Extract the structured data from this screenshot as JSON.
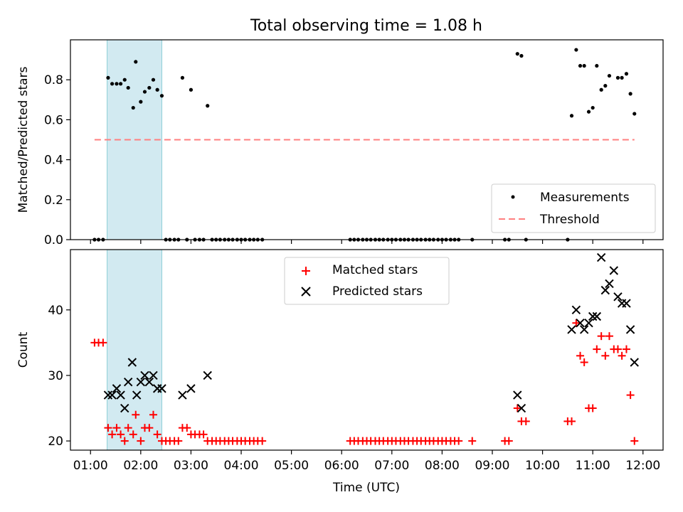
{
  "chart_data": [
    {
      "type": "scatter",
      "title": "Total observing time = 1.08 h",
      "xlabel": "",
      "ylabel": "Matched/Predicted stars",
      "x_unit": "hours UTC",
      "xlim": [
        0.6,
        12.4
      ],
      "ylim": [
        0.0,
        1.0
      ],
      "yticks": [
        "0.0",
        "0.2",
        "0.4",
        "0.6",
        "0.8"
      ],
      "shaded_span": [
        1.33,
        2.42
      ],
      "shaded_color": "#add8e6",
      "grid": false,
      "legend_position": "lower right",
      "legend": [
        "Measurements",
        "Threshold"
      ],
      "series": [
        {
          "name": "Measurements",
          "marker": "dot",
          "color": "#000000",
          "x": [
            1.35,
            1.43,
            1.52,
            1.6,
            1.68,
            1.75,
            1.85,
            1.9,
            2.0,
            2.08,
            2.17,
            2.25,
            2.33,
            2.42,
            2.83,
            3.0,
            3.33,
            9.5,
            9.58,
            10.58,
            10.67,
            10.75,
            10.83,
            10.92,
            11.0,
            11.08,
            11.17,
            11.25,
            11.33,
            11.5,
            11.58,
            11.67,
            11.75,
            11.83,
            1.08,
            1.16,
            1.25,
            2.5,
            2.58,
            2.67,
            2.75,
            2.92,
            3.08,
            3.17,
            3.25,
            3.42,
            3.5,
            3.58,
            3.67,
            3.75,
            3.83,
            3.92,
            4.0,
            4.08,
            4.17,
            4.25,
            4.33,
            4.42,
            6.17,
            6.25,
            6.33,
            6.42,
            6.5,
            6.58,
            6.67,
            6.75,
            6.83,
            6.92,
            7.0,
            7.08,
            7.17,
            7.25,
            7.33,
            7.42,
            7.5,
            7.58,
            7.67,
            7.75,
            7.83,
            7.92,
            8.0,
            8.08,
            8.17,
            8.25,
            8.33,
            8.6,
            9.25,
            9.33,
            9.67,
            10.5
          ],
          "y": [
            0.81,
            0.78,
            0.78,
            0.78,
            0.8,
            0.76,
            0.66,
            0.89,
            0.69,
            0.74,
            0.76,
            0.8,
            0.75,
            0.72,
            0.81,
            0.75,
            0.67,
            0.93,
            0.92,
            0.62,
            0.95,
            0.87,
            0.87,
            0.64,
            0.66,
            0.87,
            0.75,
            0.77,
            0.82,
            0.81,
            0.81,
            0.83,
            0.73,
            0.63,
            0,
            0,
            0,
            0,
            0,
            0,
            0,
            0,
            0,
            0,
            0,
            0,
            0,
            0,
            0,
            0,
            0,
            0,
            0,
            0,
            0,
            0,
            0,
            0,
            0,
            0,
            0,
            0,
            0,
            0,
            0,
            0,
            0,
            0,
            0,
            0,
            0,
            0,
            0,
            0,
            0,
            0,
            0,
            0,
            0,
            0,
            0,
            0,
            0,
            0,
            0,
            0,
            0,
            0,
            0,
            0
          ]
        },
        {
          "name": "Threshold",
          "style": "dashed",
          "color": "#ff7f7f",
          "x": [
            1.08,
            11.83
          ],
          "y": [
            0.5,
            0.5
          ]
        }
      ]
    },
    {
      "type": "scatter",
      "title": "",
      "xlabel": "Time (UTC)",
      "ylabel": "Count",
      "x_unit": "hours UTC",
      "xlim": [
        0.6,
        12.4
      ],
      "ylim": [
        18.6,
        49.2
      ],
      "yticks": [
        "20",
        "30",
        "40"
      ],
      "xticks": [
        "01:00",
        "02:00",
        "03:00",
        "04:00",
        "05:00",
        "06:00",
        "07:00",
        "08:00",
        "09:00",
        "10:00",
        "11:00",
        "12:00"
      ],
      "shaded_span": [
        1.33,
        2.42
      ],
      "shaded_color": "#add8e6",
      "grid": false,
      "legend_position": "upper center",
      "legend": [
        "Matched stars",
        "Predicted stars"
      ],
      "series": [
        {
          "name": "Matched stars",
          "marker": "plus",
          "color": "#ff0000",
          "x": [
            1.08,
            1.16,
            1.25,
            1.35,
            1.43,
            1.52,
            1.6,
            1.68,
            1.75,
            1.85,
            1.9,
            2.0,
            2.08,
            2.17,
            2.25,
            2.33,
            2.42,
            2.5,
            2.58,
            2.67,
            2.75,
            2.83,
            2.92,
            3.0,
            3.08,
            3.17,
            3.25,
            3.33,
            3.42,
            3.5,
            3.58,
            3.67,
            3.75,
            3.83,
            3.92,
            4.0,
            4.08,
            4.17,
            4.25,
            4.33,
            4.42,
            6.17,
            6.25,
            6.33,
            6.42,
            6.5,
            6.58,
            6.67,
            6.75,
            6.83,
            6.92,
            7.0,
            7.08,
            7.17,
            7.25,
            7.33,
            7.42,
            7.5,
            7.58,
            7.67,
            7.75,
            7.83,
            7.92,
            8.0,
            8.08,
            8.17,
            8.25,
            8.33,
            8.6,
            9.25,
            9.33,
            9.5,
            9.58,
            9.67,
            10.5,
            10.58,
            10.67,
            10.75,
            10.83,
            10.92,
            11.0,
            11.08,
            11.17,
            11.25,
            11.33,
            11.42,
            11.5,
            11.58,
            11.67,
            11.75,
            11.83
          ],
          "y": [
            35,
            35,
            35,
            22,
            21,
            22,
            21,
            20,
            22,
            21,
            24,
            20,
            22,
            22,
            24,
            21,
            20,
            20,
            20,
            20,
            20,
            22,
            22,
            21,
            21,
            21,
            21,
            20,
            20,
            20,
            20,
            20,
            20,
            20,
            20,
            20,
            20,
            20,
            20,
            20,
            20,
            20,
            20,
            20,
            20,
            20,
            20,
            20,
            20,
            20,
            20,
            20,
            20,
            20,
            20,
            20,
            20,
            20,
            20,
            20,
            20,
            20,
            20,
            20,
            20,
            20,
            20,
            20,
            20,
            20,
            20,
            25,
            23,
            23,
            23,
            23,
            38,
            33,
            32,
            25,
            25,
            34,
            36,
            33,
            36,
            34,
            34,
            33,
            34,
            27,
            20
          ]
        },
        {
          "name": "Predicted stars",
          "marker": "x",
          "color": "#000000",
          "x": [
            1.35,
            1.43,
            1.52,
            1.6,
            1.68,
            1.75,
            1.83,
            1.92,
            2.0,
            2.08,
            2.17,
            2.25,
            2.33,
            2.42,
            2.83,
            3.0,
            3.33,
            9.5,
            9.58,
            10.58,
            10.67,
            10.75,
            10.83,
            10.92,
            11.0,
            11.08,
            11.17,
            11.25,
            11.33,
            11.42,
            11.5,
            11.58,
            11.67,
            11.75,
            11.83
          ],
          "y": [
            27,
            27,
            28,
            27,
            25,
            29,
            32,
            27,
            29,
            30,
            29,
            30,
            28,
            28,
            27,
            28,
            30,
            27,
            25,
            37,
            40,
            38,
            37,
            38,
            39,
            39,
            48,
            43,
            44,
            46,
            42,
            41,
            41,
            37,
            32
          ]
        }
      ]
    }
  ]
}
